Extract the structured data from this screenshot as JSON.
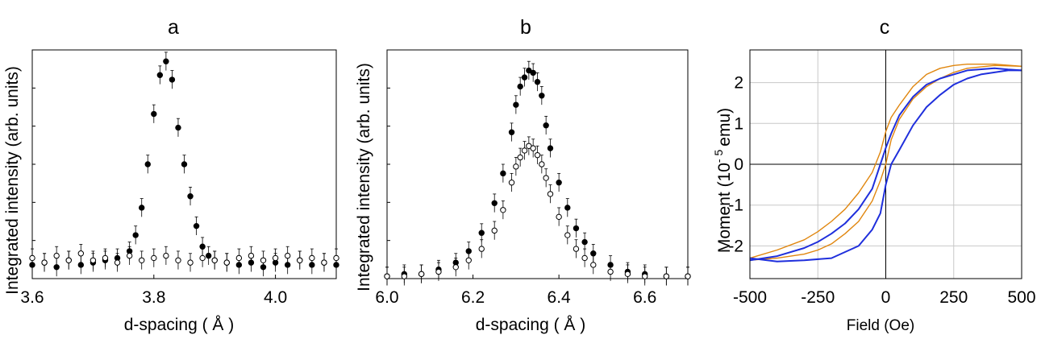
{
  "chart_data": [
    {
      "panel": "a",
      "type": "scatter",
      "title": "a",
      "xlabel": "d-spacing ( Å )",
      "ylabel": "Integrated intensity (arb. units)",
      "xlim": [
        3.6,
        4.1
      ],
      "ylim": [
        0,
        1.0
      ],
      "xticks": [
        3.6,
        3.8,
        4.0
      ],
      "xticklabels": [
        "3.6",
        "3.8",
        "4.0"
      ],
      "grid": false,
      "series": [
        {
          "marker": "filled-circle",
          "x": [
            3.6,
            3.62,
            3.64,
            3.66,
            3.68,
            3.7,
            3.72,
            3.74,
            3.76,
            3.77,
            3.78,
            3.79,
            3.8,
            3.81,
            3.82,
            3.83,
            3.84,
            3.85,
            3.86,
            3.87,
            3.88,
            3.89,
            3.9,
            3.92,
            3.94,
            3.96,
            3.98,
            4.0,
            4.02,
            4.04,
            4.06,
            4.08,
            4.1
          ],
          "y": [
            0.06,
            0.07,
            0.05,
            0.08,
            0.06,
            0.07,
            0.08,
            0.09,
            0.12,
            0.19,
            0.31,
            0.5,
            0.72,
            0.89,
            0.95,
            0.87,
            0.66,
            0.5,
            0.36,
            0.23,
            0.14,
            0.1,
            0.08,
            0.07,
            0.06,
            0.07,
            0.05,
            0.07,
            0.06,
            0.08,
            0.06,
            0.07,
            0.06
          ]
        },
        {
          "marker": "open-circle",
          "x": [
            3.6,
            3.62,
            3.64,
            3.66,
            3.68,
            3.7,
            3.72,
            3.74,
            3.76,
            3.78,
            3.8,
            3.82,
            3.84,
            3.86,
            3.88,
            3.9,
            3.92,
            3.94,
            3.96,
            3.98,
            4.0,
            4.02,
            4.04,
            4.06,
            4.08,
            4.1
          ],
          "y": [
            0.09,
            0.07,
            0.1,
            0.08,
            0.11,
            0.08,
            0.09,
            0.07,
            0.1,
            0.08,
            0.09,
            0.1,
            0.08,
            0.07,
            0.09,
            0.08,
            0.07,
            0.09,
            0.1,
            0.08,
            0.09,
            0.1,
            0.08,
            0.09,
            0.07,
            0.09
          ]
        }
      ]
    },
    {
      "panel": "b",
      "type": "scatter",
      "title": "b",
      "xlabel": "d-spacing ( Å )",
      "ylabel": "Integrated intensity (arb. units)",
      "xlim": [
        6.0,
        6.7
      ],
      "ylim": [
        0,
        1.0
      ],
      "xticks": [
        6.0,
        6.2,
        6.4,
        6.6
      ],
      "xticklabels": [
        "6.0",
        "6.2",
        "6.4",
        "6.6"
      ],
      "grid": false,
      "series": [
        {
          "marker": "filled-circle",
          "x": [
            6.0,
            6.04,
            6.08,
            6.12,
            6.16,
            6.19,
            6.22,
            6.25,
            6.27,
            6.29,
            6.3,
            6.31,
            6.32,
            6.33,
            6.34,
            6.35,
            6.36,
            6.37,
            6.38,
            6.4,
            6.42,
            6.44,
            6.46,
            6.48,
            6.52,
            6.56,
            6.6,
            6.65,
            6.7
          ],
          "y": [
            0.01,
            0.02,
            0.02,
            0.04,
            0.07,
            0.12,
            0.2,
            0.33,
            0.46,
            0.64,
            0.76,
            0.84,
            0.88,
            0.91,
            0.9,
            0.86,
            0.8,
            0.67,
            0.57,
            0.42,
            0.31,
            0.22,
            0.16,
            0.11,
            0.06,
            0.03,
            0.02,
            0.01,
            0.01
          ]
        },
        {
          "marker": "open-circle",
          "x": [
            6.0,
            6.04,
            6.08,
            6.12,
            6.16,
            6.19,
            6.22,
            6.25,
            6.27,
            6.29,
            6.3,
            6.31,
            6.32,
            6.33,
            6.34,
            6.35,
            6.36,
            6.37,
            6.38,
            6.4,
            6.42,
            6.44,
            6.46,
            6.48,
            6.52,
            6.56,
            6.6,
            6.65,
            6.7
          ],
          "y": [
            0.01,
            0.01,
            0.02,
            0.03,
            0.05,
            0.08,
            0.13,
            0.21,
            0.3,
            0.42,
            0.49,
            0.53,
            0.56,
            0.58,
            0.57,
            0.54,
            0.5,
            0.44,
            0.37,
            0.27,
            0.19,
            0.13,
            0.09,
            0.06,
            0.03,
            0.02,
            0.01,
            0.01,
            0.01
          ]
        }
      ]
    },
    {
      "panel": "c",
      "type": "line",
      "title": "c",
      "xlabel": "Field (Oe)",
      "ylabel": "Moment (10 - 5 emu)",
      "ylabel_parts": {
        "main": "Moment  (10",
        "sup": "- 5",
        "unit": "emu)"
      },
      "xlim": [
        -500,
        500
      ],
      "ylim": [
        -2.8,
        2.8
      ],
      "xticks": [
        -500,
        -250,
        0,
        250,
        500
      ],
      "xticklabels": [
        "-500",
        "-250",
        "0",
        "250",
        "500"
      ],
      "yticks": [
        -2,
        -1,
        0,
        1,
        2
      ],
      "yticklabels": [
        "-2",
        "-1",
        "0",
        "1",
        "2"
      ],
      "grid": true,
      "series": [
        {
          "color": "#e0860e",
          "branch": "descending",
          "x": [
            500,
            400,
            300,
            250,
            200,
            150,
            100,
            50,
            20,
            0,
            -20,
            -50,
            -100,
            -150,
            -200,
            -250,
            -300,
            -400,
            -500
          ],
          "y": [
            2.4,
            2.45,
            2.45,
            2.42,
            2.35,
            2.2,
            1.9,
            1.45,
            1.15,
            0.8,
            0.3,
            -0.2,
            -0.7,
            -1.1,
            -1.4,
            -1.65,
            -1.85,
            -2.1,
            -2.3
          ]
        },
        {
          "color": "#e0860e",
          "branch": "ascending",
          "x": [
            -500,
            -400,
            -300,
            -250,
            -200,
            -150,
            -100,
            -50,
            -20,
            0,
            20,
            50,
            100,
            150,
            200,
            250,
            300,
            400,
            500
          ],
          "y": [
            -2.35,
            -2.3,
            -2.2,
            -2.1,
            -1.95,
            -1.7,
            -1.4,
            -0.9,
            -0.4,
            0.0,
            0.6,
            1.1,
            1.6,
            1.9,
            2.1,
            2.25,
            2.35,
            2.42,
            2.4
          ]
        },
        {
          "color": "#1f2fdc",
          "branch": "descending",
          "x": [
            500,
            450,
            400,
            300,
            250,
            200,
            150,
            100,
            50,
            20,
            0,
            -20,
            -50,
            -100,
            -150,
            -200,
            -250,
            -300,
            -400,
            -500
          ],
          "y": [
            2.3,
            2.32,
            2.35,
            2.3,
            2.2,
            2.1,
            1.95,
            1.65,
            1.2,
            0.75,
            0.4,
            0.0,
            -0.6,
            -1.1,
            -1.45,
            -1.7,
            -1.9,
            -2.05,
            -2.25,
            -2.35
          ]
        },
        {
          "color": "#1f2fdc",
          "branch": "ascending",
          "x": [
            -500,
            -400,
            -300,
            -200,
            -100,
            -50,
            -20,
            0,
            20,
            50,
            100,
            150,
            200,
            250,
            300,
            350,
            400,
            450,
            500
          ],
          "y": [
            -2.3,
            -2.38,
            -2.35,
            -2.3,
            -2.0,
            -1.6,
            -1.2,
            -0.5,
            0.0,
            0.35,
            0.95,
            1.4,
            1.7,
            1.95,
            2.1,
            2.2,
            2.25,
            2.3,
            2.3
          ]
        }
      ]
    }
  ]
}
